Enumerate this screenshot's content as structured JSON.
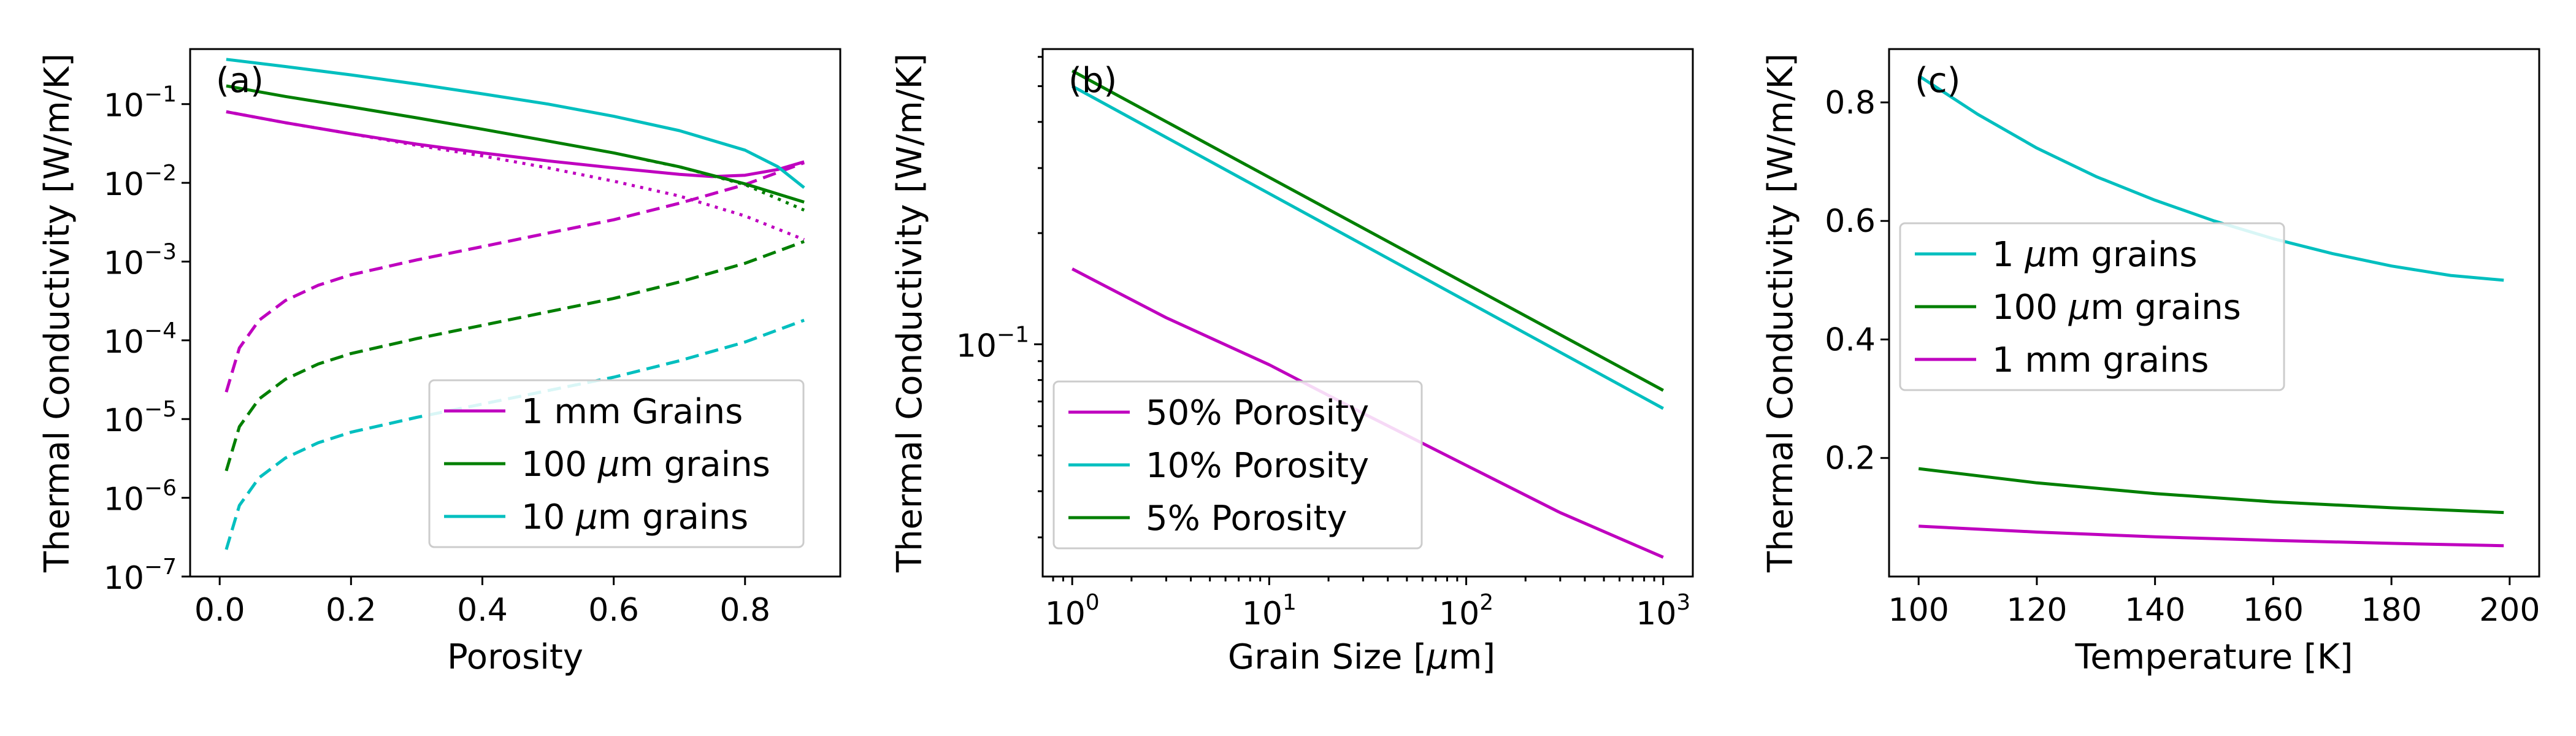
{
  "chart_data": [
    {
      "type": "line",
      "panel_label": "(a)",
      "xlabel": "Porosity",
      "ylabel": "Thermal Conductivity [W/m/K]",
      "yscale": "log",
      "xlim": [
        -0.045,
        0.945
      ],
      "ylim": [
        1e-07,
        0.5
      ],
      "xticks": [
        0.0,
        0.2,
        0.4,
        0.6,
        0.8
      ],
      "xtick_labels": [
        "0.0",
        "0.2",
        "0.4",
        "0.6",
        "0.8"
      ],
      "ytick_exponents": [
        -7,
        -6,
        -5,
        -4,
        -3,
        -2,
        -1
      ],
      "ytick_base": "10",
      "legend": {
        "placement": "lower-right",
        "entries": [
          {
            "pre": "1 mm Grains",
            "mu": "",
            "post": "",
            "color": "#bf00bf"
          },
          {
            "pre": "100 ",
            "mu": "μ",
            "post": "m grains",
            "color": "#007f00"
          },
          {
            "pre": "10 ",
            "mu": "μ",
            "post": "m grains",
            "color": "#00bfbf"
          }
        ]
      },
      "series": [
        {
          "name": "1 mm total",
          "color": "#bf00bf",
          "dash": "solid",
          "x": [
            0.01,
            0.1,
            0.2,
            0.3,
            0.4,
            0.5,
            0.6,
            0.7,
            0.75,
            0.8,
            0.85,
            0.89
          ],
          "y": [
            0.08,
            0.058,
            0.042,
            0.031,
            0.024,
            0.019,
            0.0155,
            0.0128,
            0.012,
            0.0125,
            0.0148,
            0.0185
          ]
        },
        {
          "name": "1 mm solid",
          "color": "#bf00bf",
          "dash": "dotted",
          "x": [
            0.01,
            0.1,
            0.2,
            0.3,
            0.4,
            0.5,
            0.6,
            0.7,
            0.8,
            0.89
          ],
          "y": [
            0.08,
            0.058,
            0.042,
            0.03,
            0.022,
            0.0155,
            0.0105,
            0.0068,
            0.0038,
            0.0019
          ]
        },
        {
          "name": "1 mm radiative",
          "color": "#bf00bf",
          "dash": "dashed",
          "x": [
            0.01,
            0.03,
            0.06,
            0.1,
            0.15,
            0.2,
            0.3,
            0.4,
            0.5,
            0.6,
            0.7,
            0.8,
            0.89
          ],
          "y": [
            2.2e-05,
            8e-05,
            0.00018,
            0.00032,
            0.0005,
            0.00068,
            0.00105,
            0.00155,
            0.0023,
            0.0034,
            0.0055,
            0.0095,
            0.018
          ]
        },
        {
          "name": "100 um total",
          "color": "#007f00",
          "dash": "solid",
          "x": [
            0.01,
            0.1,
            0.2,
            0.3,
            0.4,
            0.5,
            0.6,
            0.7,
            0.8,
            0.89
          ],
          "y": [
            0.17,
            0.125,
            0.092,
            0.067,
            0.048,
            0.034,
            0.024,
            0.016,
            0.0097,
            0.0057
          ]
        },
        {
          "name": "100 um solid",
          "color": "#007f00",
          "dash": "dotted",
          "x": [
            0.65,
            0.7,
            0.8,
            0.89
          ],
          "y": [
            0.0195,
            0.016,
            0.0095,
            0.0045
          ]
        },
        {
          "name": "100 um radiative",
          "color": "#007f00",
          "dash": "dashed",
          "x": [
            0.01,
            0.03,
            0.06,
            0.1,
            0.15,
            0.2,
            0.3,
            0.4,
            0.5,
            0.6,
            0.7,
            0.8,
            0.89
          ],
          "y": [
            2.2e-06,
            8e-06,
            1.8e-05,
            3.2e-05,
            5e-05,
            6.8e-05,
            0.000105,
            0.000155,
            0.00023,
            0.00034,
            0.00055,
            0.00095,
            0.0018
          ]
        },
        {
          "name": "10 um total",
          "color": "#00bfbf",
          "dash": "solid",
          "x": [
            0.01,
            0.1,
            0.2,
            0.3,
            0.4,
            0.5,
            0.6,
            0.7,
            0.8,
            0.85,
            0.89
          ],
          "y": [
            0.37,
            0.3,
            0.235,
            0.18,
            0.135,
            0.1,
            0.07,
            0.046,
            0.026,
            0.016,
            0.0087
          ]
        },
        {
          "name": "10 um radiative",
          "color": "#00bfbf",
          "dash": "dashed",
          "x": [
            0.01,
            0.03,
            0.06,
            0.1,
            0.15,
            0.2,
            0.3,
            0.4,
            0.5,
            0.6,
            0.7,
            0.8,
            0.89
          ],
          "y": [
            2.2e-07,
            8e-07,
            1.8e-06,
            3.2e-06,
            5e-06,
            6.8e-06,
            1.05e-05,
            1.55e-05,
            2.3e-05,
            3.4e-05,
            5.5e-05,
            9.5e-05,
            0.00018
          ]
        }
      ]
    },
    {
      "type": "line",
      "panel_label": "(b)",
      "xlabel_pre": "Grain Size [",
      "xlabel_mu": "μ",
      "xlabel_post": "m]",
      "ylabel": "Thermal Conductivity [W/m/K]",
      "xscale": "log",
      "yscale": "log",
      "xlim": [
        0.708,
        1413
      ],
      "ylim": [
        0.0235,
        0.63
      ],
      "xtick_exponents": [
        0,
        1,
        2,
        3
      ],
      "xtick_base": "10",
      "ytick_exponents": [
        -1
      ],
      "ytick_base": "10",
      "legend": {
        "placement": "lower-left",
        "entries": [
          {
            "pre": "50% Porosity",
            "mu": "",
            "post": "",
            "color": "#bf00bf"
          },
          {
            "pre": "10% Porosity",
            "mu": "",
            "post": "",
            "color": "#00bfbf"
          },
          {
            "pre": "5% Porosity",
            "mu": "",
            "post": "",
            "color": "#007f00"
          }
        ]
      },
      "series": [
        {
          "name": "50% Porosity",
          "color": "#bf00bf",
          "dash": "solid",
          "x": [
            1,
            3,
            10,
            30,
            100,
            300,
            1000
          ],
          "y": [
            0.16,
            0.118,
            0.088,
            0.065,
            0.047,
            0.035,
            0.0265
          ]
        },
        {
          "name": "10% Porosity",
          "color": "#00bfbf",
          "dash": "solid",
          "x": [
            1,
            1000
          ],
          "y": [
            0.5,
            0.067
          ]
        },
        {
          "name": "5% Porosity",
          "color": "#007f00",
          "dash": "solid",
          "x": [
            1,
            1000
          ],
          "y": [
            0.55,
            0.075
          ]
        }
      ]
    },
    {
      "type": "line",
      "panel_label": "(c)",
      "xlabel": "Temperature [K]",
      "ylabel": "Thermal Conductivity [W/m/K]",
      "xlim": [
        95,
        205
      ],
      "ylim": [
        0.0,
        0.89
      ],
      "xticks": [
        100,
        120,
        140,
        160,
        180,
        200
      ],
      "xtick_labels": [
        "100",
        "120",
        "140",
        "160",
        "180",
        "200"
      ],
      "yticks": [
        0.2,
        0.4,
        0.6,
        0.8
      ],
      "ytick_labels": [
        "0.2",
        "0.4",
        "0.6",
        "0.8"
      ],
      "legend": {
        "placement": "center-left",
        "entries": [
          {
            "pre": "1 ",
            "mu": "μ",
            "post": "m grains",
            "color": "#00bfbf"
          },
          {
            "pre": "100 ",
            "mu": "μ",
            "post": "m grains",
            "color": "#007f00"
          },
          {
            "pre": "1 mm grains",
            "mu": "",
            "post": "",
            "color": "#bf00bf"
          }
        ]
      },
      "series": [
        {
          "name": "1 um grains",
          "color": "#00bfbf",
          "dash": "solid",
          "x": [
            100,
            110,
            120,
            130,
            140,
            150,
            160,
            170,
            180,
            190,
            199
          ],
          "y": [
            0.845,
            0.78,
            0.723,
            0.675,
            0.635,
            0.6,
            0.57,
            0.545,
            0.524,
            0.508,
            0.5
          ]
        },
        {
          "name": "100 um grains",
          "color": "#007f00",
          "dash": "solid",
          "x": [
            100,
            120,
            140,
            160,
            180,
            199
          ],
          "y": [
            0.182,
            0.158,
            0.14,
            0.126,
            0.116,
            0.108
          ]
        },
        {
          "name": "1 mm grains",
          "color": "#bf00bf",
          "dash": "solid",
          "x": [
            100,
            120,
            140,
            160,
            180,
            199
          ],
          "y": [
            0.085,
            0.075,
            0.067,
            0.061,
            0.056,
            0.052
          ]
        }
      ]
    }
  ]
}
